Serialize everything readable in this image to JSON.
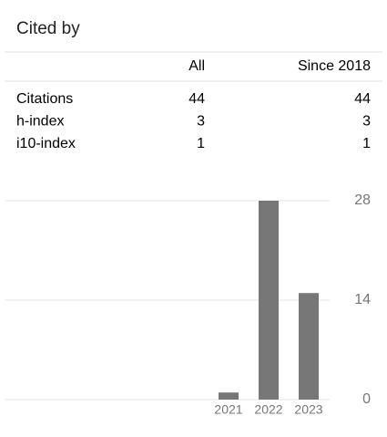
{
  "title": "Cited by",
  "table": {
    "header": [
      "All",
      "Since 2018"
    ],
    "rows": [
      {
        "label": "Citations",
        "values": [
          44,
          44
        ]
      },
      {
        "label": "h-index",
        "values": [
          3,
          3
        ]
      },
      {
        "label": "i10-index",
        "values": [
          1,
          1
        ]
      }
    ]
  },
  "chart_data": {
    "type": "bar",
    "categories": [
      "2021",
      "2022",
      "2023"
    ],
    "values": [
      1,
      28,
      15
    ],
    "color": "#777777",
    "ylim": [
      0,
      28
    ],
    "yticks": [
      0,
      14,
      28
    ],
    "grid": true
  }
}
